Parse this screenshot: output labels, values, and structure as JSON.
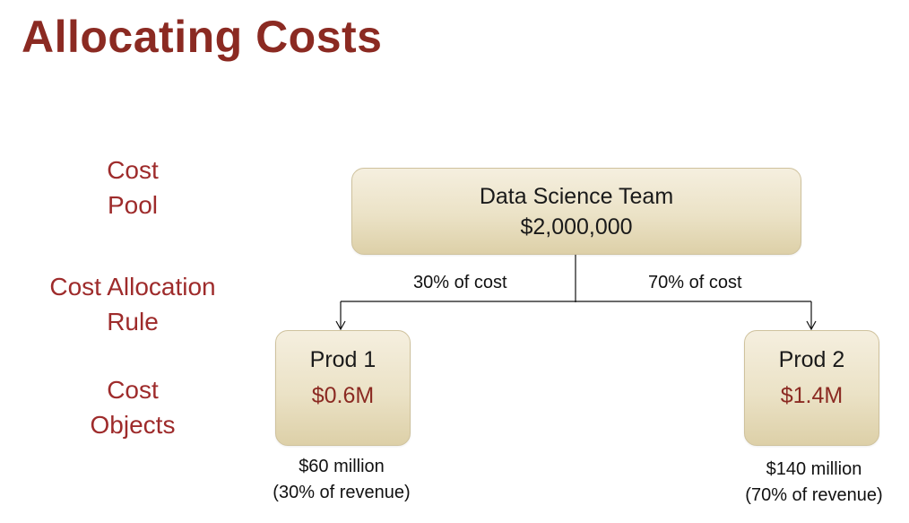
{
  "slide": {
    "title": "Allocating Costs"
  },
  "row_labels": {
    "cost_pool": [
      "Cost",
      "Pool"
    ],
    "allocation_rule": [
      "Cost Allocation",
      "Rule"
    ],
    "cost_objects": [
      "Cost",
      "Objects"
    ]
  },
  "pool": {
    "name": "Data Science Team",
    "amount": "$2,000,000"
  },
  "rules": {
    "left": "30% of cost",
    "right": "70% of cost"
  },
  "objects": [
    {
      "name": "Prod 1",
      "amount": "$0.6M",
      "caption": [
        "$60 million",
        "(30% of revenue)"
      ]
    },
    {
      "name": "Prod 2",
      "amount": "$1.4M",
      "caption": [
        "$140 million",
        "(70% of revenue)"
      ]
    }
  ],
  "colors": {
    "title": "#8b2a22",
    "row_label": "#9e2b2b",
    "amount_accent": "#8b2a22",
    "box_fill": "#ebe2c6"
  }
}
